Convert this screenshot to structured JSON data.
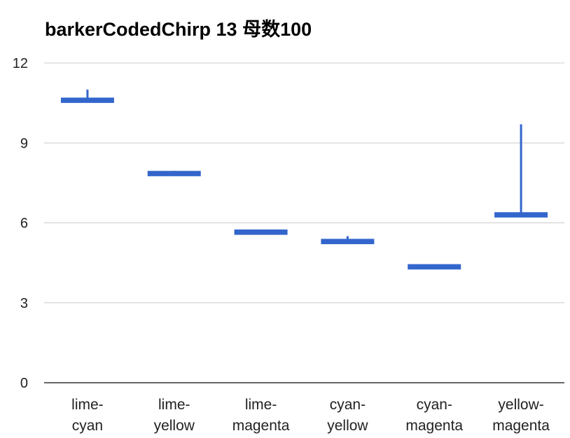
{
  "chart_data": {
    "type": "candlestick",
    "title": "barkerCodedChirp 13 母数100",
    "xlabel": "",
    "ylabel": "",
    "ylim": [
      0,
      12
    ],
    "yticks": [
      "0",
      "3",
      "6",
      "9",
      "12"
    ],
    "grid": true,
    "legend": "none",
    "color": "#3366cc",
    "categories": [
      [
        "lime-",
        "cyan"
      ],
      [
        "lime-",
        "yellow"
      ],
      [
        "lime-",
        "magenta"
      ],
      [
        "cyan-",
        "yellow"
      ],
      [
        "cyan-",
        "magenta"
      ],
      [
        "yellow-",
        "magenta"
      ]
    ],
    "boxes": [
      {
        "low": 10.6,
        "open": 10.5,
        "close": 10.7,
        "high": 11.0
      },
      {
        "low": 7.8,
        "open": 7.75,
        "close": 7.95,
        "high": 7.95
      },
      {
        "low": 5.6,
        "open": 5.55,
        "close": 5.75,
        "high": 5.75
      },
      {
        "low": 5.25,
        "open": 5.2,
        "close": 5.4,
        "high": 5.5
      },
      {
        "low": 4.3,
        "open": 4.25,
        "close": 4.45,
        "high": 4.45
      },
      {
        "low": 6.3,
        "open": 6.2,
        "close": 6.4,
        "high": 9.7
      }
    ]
  }
}
